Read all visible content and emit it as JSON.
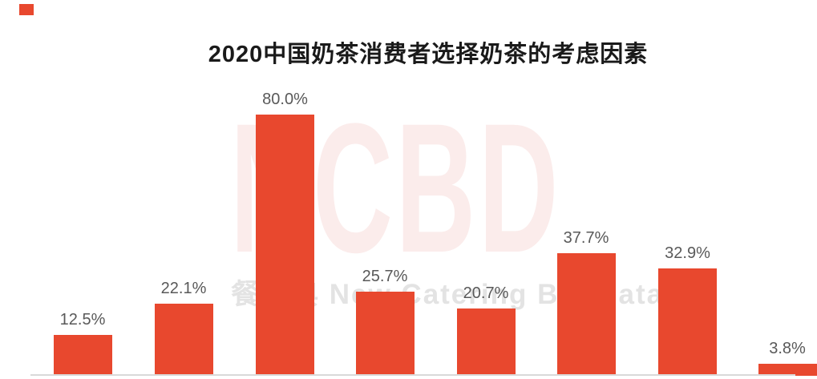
{
  "title": {
    "text": "2020中国奶茶消费者选择奶茶的考虑因素",
    "color": "#1a1a1a"
  },
  "accent": {
    "corner_square_color": "#e8482e"
  },
  "watermark": {
    "brand": "NCBD",
    "brand_color": "#fbeceb",
    "tagline": "餐宝典 New Catering Big Data",
    "tagline_color": "#e3e3e3"
  },
  "chart_data": {
    "type": "bar",
    "title": "2020中国奶茶消费者选择奶茶的考虑因素",
    "categories": null,
    "values": [
      12.5,
      22.1,
      80.0,
      25.7,
      20.7,
      37.7,
      32.9,
      3.8
    ],
    "labels": [
      "12.5%",
      "22.1%",
      "80.0%",
      "25.7%",
      "20.7%",
      "37.7%",
      "32.9%",
      "3.8%"
    ],
    "xlabel": "",
    "ylabel": "",
    "ylim": [
      0,
      100
    ],
    "grid": false,
    "legend": false,
    "bar_color": "#e8482e",
    "label_color": "#595959",
    "axis_line_color": "#d9d9d9",
    "note": "x-axis category labels and right-most bar are cropped by the viewport edge"
  }
}
